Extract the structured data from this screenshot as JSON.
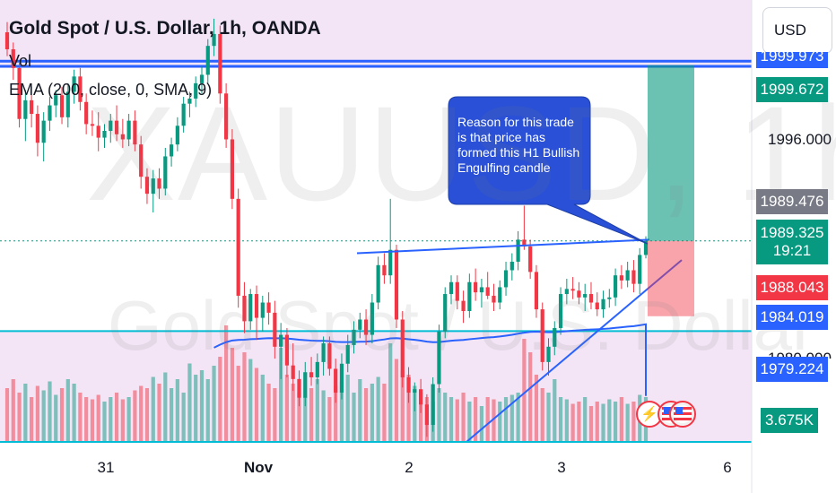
{
  "chart_data": {
    "type": "candlestick",
    "title": "Gold Spot / U.S. Dollar, 1h, OANDA",
    "indicators": [
      "Vol",
      "EMA (200, close, 0, SMA, 9)"
    ],
    "currency": "USD",
    "watermark_symbol": "XAUUSD, 1h",
    "watermark_description": "Gold Spot / U.S. Dollar",
    "y_axis": {
      "labels": [
        "1996.000"
      ],
      "ylim": [
        1977.5,
        2003.5
      ]
    },
    "x_axis": {
      "labels": [
        "31",
        "Nov",
        "2",
        "3",
        "6"
      ],
      "bold": [
        "Nov"
      ]
    },
    "price_tags": [
      {
        "label": "1999.973",
        "price": 1999.973,
        "color": "#2962ff"
      },
      {
        "label": "1999.672",
        "price": 1999.672,
        "color": "#089981"
      },
      {
        "label": "1989.476",
        "price": 1989.476,
        "color": "#787b86"
      },
      {
        "label": "1989.325",
        "sub": "19:21",
        "price": 1989.325,
        "color": "#089981"
      },
      {
        "label": "1988.043",
        "price": 1988.043,
        "color": "#f23645"
      },
      {
        "label": "1984.019",
        "price": 1984.019,
        "color": "#2962ff"
      },
      {
        "label": "1979.224",
        "price": 1979.224,
        "color": "#2962ff"
      },
      {
        "label": "3.675K",
        "price": null,
        "color": "#089981"
      }
    ],
    "hidden_label": "1980.000",
    "horizontal_lines": [
      1999.9,
      1999.6,
      1984.02
    ],
    "zones": [
      {
        "from": 1999.5,
        "to": 2003.5
      },
      {
        "from": 1976.0,
        "to": 1984.02
      }
    ],
    "position": {
      "type": "long",
      "entry": 1989.325,
      "target": 1999.672,
      "stop": 1988.043
    },
    "annotation": "Reason for this trade is that price has formed this H1 Bullish Engulfing candle",
    "candles": [
      [
        2001.6,
        2002.2,
        2000.2,
        2000.6
      ],
      [
        2000.6,
        2001.0,
        1998.8,
        1999.5
      ],
      [
        1999.5,
        1999.8,
        1996.0,
        1996.5
      ],
      [
        1996.5,
        1998.2,
        1995.2,
        1997.6
      ],
      [
        1997.6,
        1998.4,
        1996.0,
        1996.8
      ],
      [
        1996.8,
        1997.3,
        1994.3,
        1995.1
      ],
      [
        1995.1,
        1996.9,
        1994.0,
        1996.4
      ],
      [
        1996.4,
        1997.8,
        1995.8,
        1997.3
      ],
      [
        1997.3,
        1998.2,
        1996.6,
        1997.9
      ],
      [
        1997.9,
        1998.4,
        1996.2,
        1996.6
      ],
      [
        1996.6,
        1998.6,
        1996.0,
        1998.1
      ],
      [
        1998.1,
        1999.4,
        1997.4,
        1999.0
      ],
      [
        1999.0,
        1999.5,
        1997.0,
        1997.5
      ],
      [
        1997.5,
        1998.0,
        1995.6,
        1996.2
      ],
      [
        1996.2,
        1997.0,
        1995.5,
        1996.1
      ],
      [
        1996.1,
        1996.9,
        1994.6,
        1995.4
      ],
      [
        1995.4,
        1996.2,
        1994.8,
        1995.8
      ],
      [
        1995.8,
        1996.8,
        1995.1,
        1996.4
      ],
      [
        1996.4,
        1997.3,
        1995.2,
        1995.6
      ],
      [
        1995.6,
        1996.5,
        1994.8,
        1995.3
      ],
      [
        1995.3,
        1996.8,
        1994.9,
        1996.4
      ],
      [
        1996.4,
        1997.0,
        1994.6,
        1995.0
      ],
      [
        1995.0,
        1995.5,
        1992.4,
        1993.1
      ],
      [
        1993.1,
        1993.6,
        1991.5,
        1992.1
      ],
      [
        1992.1,
        1993.5,
        1991.0,
        1993.0
      ],
      [
        1993.0,
        1993.6,
        1991.8,
        1992.4
      ],
      [
        1992.4,
        1994.8,
        1992.0,
        1994.3
      ],
      [
        1994.3,
        1995.4,
        1993.7,
        1995.0
      ],
      [
        1995.0,
        1996.6,
        1994.6,
        1996.1
      ],
      [
        1996.1,
        1997.8,
        1995.7,
        1997.4
      ],
      [
        1997.4,
        1998.1,
        1996.6,
        1997.7
      ],
      [
        1997.7,
        1999.0,
        1997.2,
        1998.6
      ],
      [
        1998.6,
        1999.6,
        1998.0,
        1999.1
      ],
      [
        1999.1,
        2001.2,
        1998.6,
        2000.8
      ],
      [
        2000.8,
        2002.4,
        2000.2,
        2001.5
      ],
      [
        2001.5,
        2002.0,
        1997.4,
        1998.0
      ],
      [
        1998.0,
        1998.6,
        1994.8,
        1995.3
      ],
      [
        1995.3,
        1995.9,
        1991.2,
        1991.8
      ],
      [
        1991.8,
        1992.4,
        1985.4,
        1986.1
      ],
      [
        1986.1,
        1986.9,
        1983.9,
        1984.6
      ],
      [
        1984.6,
        1986.5,
        1984.1,
        1986.2
      ],
      [
        1986.2,
        1986.7,
        1983.5,
        1984.8
      ],
      [
        1984.8,
        1986.1,
        1984.0,
        1985.7
      ],
      [
        1985.7,
        1986.3,
        1984.4,
        1985.1
      ],
      [
        1985.1,
        1985.8,
        1982.4,
        1983.1
      ],
      [
        1983.1,
        1984.5,
        1981.2,
        1983.8
      ],
      [
        1983.8,
        1984.2,
        1981.3,
        1982.0
      ],
      [
        1982.0,
        1983.3,
        1980.5,
        1981.2
      ],
      [
        1981.2,
        1981.7,
        1979.6,
        1980.1
      ],
      [
        1980.1,
        1982.2,
        1979.6,
        1981.6
      ],
      [
        1981.6,
        1982.5,
        1980.8,
        1981.3
      ],
      [
        1981.3,
        1982.7,
        1980.9,
        1982.2
      ],
      [
        1982.2,
        1983.7,
        1981.4,
        1983.3
      ],
      [
        1983.3,
        1983.7,
        1981.4,
        1981.8
      ],
      [
        1981.8,
        1982.4,
        1979.8,
        1980.4
      ],
      [
        1980.4,
        1982.7,
        1980.0,
        1982.1
      ],
      [
        1982.1,
        1983.8,
        1981.6,
        1983.2
      ],
      [
        1983.2,
        1984.6,
        1982.7,
        1984.1
      ],
      [
        1984.1,
        1985.1,
        1983.6,
        1984.7
      ],
      [
        1984.7,
        1985.3,
        1983.2,
        1983.8
      ],
      [
        1983.8,
        1986.2,
        1983.3,
        1985.7
      ],
      [
        1985.7,
        1988.4,
        1985.3,
        1987.9
      ],
      [
        1987.9,
        1988.6,
        1986.8,
        1987.3
      ],
      [
        1987.3,
        1991.8,
        1986.8,
        1988.8
      ],
      [
        1988.8,
        1989.1,
        1984.2,
        1984.7
      ],
      [
        1984.7,
        1985.2,
        1980.7,
        1981.3
      ],
      [
        1981.3,
        1981.9,
        1979.8,
        1980.4
      ],
      [
        1980.4,
        1981.0,
        1979.3,
        1980.6
      ],
      [
        1980.6,
        1981.2,
        1979.2,
        1979.7
      ],
      [
        1979.7,
        1980.3,
        1977.8,
        1978.5
      ],
      [
        1978.5,
        1981.3,
        1978.1,
        1980.9
      ],
      [
        1980.9,
        1984.4,
        1980.4,
        1984.0
      ],
      [
        1984.0,
        1986.6,
        1983.6,
        1986.2
      ],
      [
        1986.2,
        1987.3,
        1985.6,
        1986.9
      ],
      [
        1986.9,
        1987.3,
        1985.3,
        1985.8
      ],
      [
        1985.8,
        1986.4,
        1984.5,
        1985.2
      ],
      [
        1985.2,
        1987.4,
        1984.8,
        1986.9
      ],
      [
        1986.9,
        1987.7,
        1985.8,
        1986.3
      ],
      [
        1986.3,
        1987.1,
        1985.4,
        1986.6
      ],
      [
        1986.6,
        1987.5,
        1985.9,
        1986.1
      ],
      [
        1986.1,
        1986.8,
        1985.2,
        1985.7
      ],
      [
        1985.7,
        1987.0,
        1985.3,
        1986.6
      ],
      [
        1986.6,
        1988.1,
        1986.1,
        1987.6
      ],
      [
        1987.6,
        1988.6,
        1987.0,
        1988.1
      ],
      [
        1988.1,
        1989.9,
        1987.6,
        1989.4
      ],
      [
        1989.4,
        1991.4,
        1988.8,
        1989.0
      ],
      [
        1989.0,
        1989.4,
        1987.1,
        1987.5
      ],
      [
        1987.5,
        1987.9,
        1984.8,
        1985.3
      ],
      [
        1985.3,
        1985.7,
        1981.7,
        1982.2
      ],
      [
        1982.2,
        1983.6,
        1981.4,
        1983.1
      ],
      [
        1983.1,
        1984.6,
        1982.6,
        1984.2
      ],
      [
        1984.2,
        1986.6,
        1983.8,
        1986.2
      ],
      [
        1986.2,
        1987.1,
        1985.6,
        1986.5
      ],
      [
        1986.5,
        1987.2,
        1985.9,
        1986.4
      ],
      [
        1986.4,
        1986.9,
        1985.6,
        1986.0
      ],
      [
        1986.0,
        1986.8,
        1985.2,
        1986.2
      ],
      [
        1986.2,
        1986.9,
        1985.3,
        1985.7
      ],
      [
        1985.7,
        1986.3,
        1984.9,
        1985.3
      ],
      [
        1985.3,
        1986.4,
        1984.8,
        1985.9
      ],
      [
        1985.9,
        1986.5,
        1985.4,
        1986.0
      ],
      [
        1986.0,
        1987.7,
        1985.5,
        1987.3
      ],
      [
        1987.3,
        1987.9,
        1986.5,
        1987.0
      ],
      [
        1987.0,
        1988.1,
        1986.6,
        1987.6
      ],
      [
        1987.6,
        1988.2,
        1986.3,
        1986.8
      ],
      [
        1986.8,
        1988.9,
        1986.2,
        1988.5
      ],
      [
        1988.5,
        1989.6,
        1988.3,
        1989.325
      ]
    ],
    "volume": [
      120,
      140,
      110,
      130,
      100,
      125,
      115,
      135,
      105,
      120,
      140,
      130,
      110,
      100,
      95,
      105,
      90,
      100,
      110,
      95,
      100,
      115,
      125,
      120,
      145,
      130,
      155,
      120,
      140,
      110,
      175,
      150,
      160,
      140,
      170,
      190,
      260,
      210,
      170,
      200,
      185,
      165,
      150,
      130,
      120,
      210,
      150,
      130,
      110,
      100,
      120,
      140,
      115,
      100,
      125,
      135,
      150,
      110,
      140,
      120,
      130,
      145,
      130,
      220,
      185,
      160,
      150,
      125,
      110,
      100,
      90,
      120,
      110,
      100,
      95,
      110,
      90,
      100,
      80,
      100,
      95,
      90,
      100,
      105,
      110,
      230,
      200,
      150,
      120,
      110,
      140,
      100,
      95,
      85,
      90,
      100,
      80,
      90,
      85,
      95,
      90,
      100,
      85,
      90,
      105,
      100
    ],
    "volume_colors": "per-candle direction",
    "ema_200": "plotted"
  }
}
